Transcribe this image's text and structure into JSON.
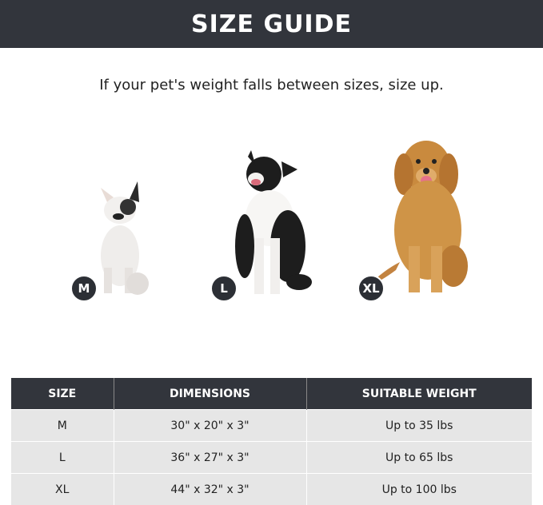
{
  "header": {
    "title": "SIZE GUIDE"
  },
  "subtitle": "If your pet's weight falls between sizes, size up.",
  "dogs": [
    {
      "badge": "M",
      "image": "french-bulldog"
    },
    {
      "badge": "L",
      "image": "border-collie"
    },
    {
      "badge": "XL",
      "image": "golden-retriever"
    }
  ],
  "table": {
    "headers": [
      "SIZE",
      "DIMENSIONS",
      "SUITABLE WEIGHT"
    ],
    "rows": [
      [
        "M",
        "30\" x 20\" x 3\"",
        "Up to 35 lbs"
      ],
      [
        "L",
        "36\" x 27\" x 3\"",
        "Up to 65 lbs"
      ],
      [
        "XL",
        "44\" x 32\" x 3\"",
        "Up to 100 lbs"
      ]
    ]
  },
  "colors": {
    "dark": "#32353c",
    "row": "#e6e6e6"
  }
}
